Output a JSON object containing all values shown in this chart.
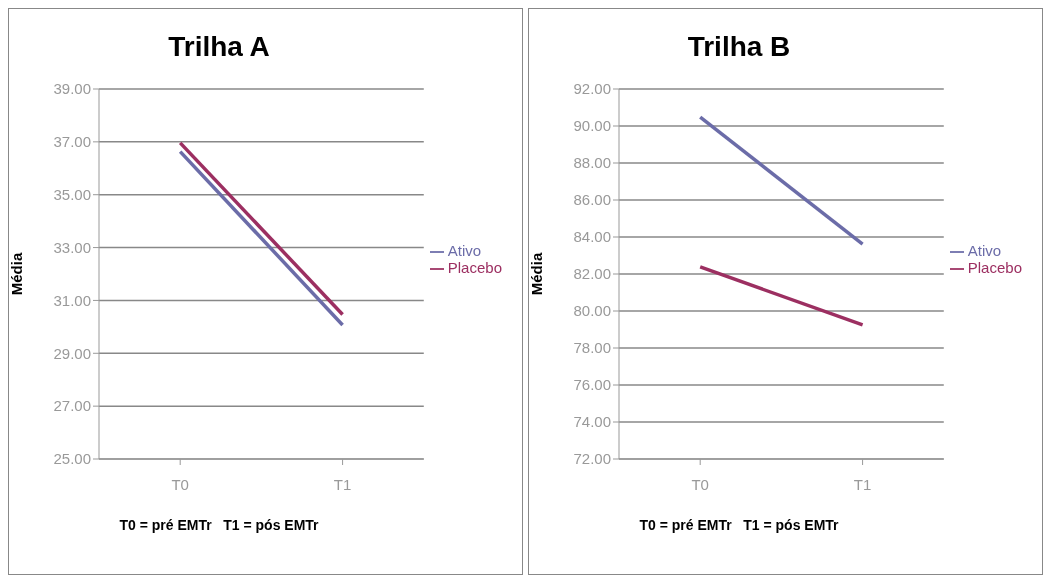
{
  "chart_data": [
    {
      "type": "line",
      "title": "Trilha A",
      "xlabel": "T0 = pré EMTr   T1 = pós EMTr",
      "ylabel": "Média",
      "categories": [
        "T0",
        "T1"
      ],
      "series": [
        {
          "name": "Ativo",
          "color": "#6b6ca8",
          "values": [
            36.63,
            30.07
          ]
        },
        {
          "name": "Placebo",
          "color": "#9c2f61",
          "values": [
            36.96,
            30.47
          ]
        }
      ],
      "ylim": [
        25,
        39
      ],
      "yticks": [
        {
          "value": 25,
          "label": "25.00"
        },
        {
          "value": 27,
          "label": "27.00"
        },
        {
          "value": 29,
          "label": "29.00"
        },
        {
          "value": 31,
          "label": "31.00"
        },
        {
          "value": 33,
          "label": "33.00"
        },
        {
          "value": 35,
          "label": "35.00"
        },
        {
          "value": 37,
          "label": "37.00"
        },
        {
          "value": 39,
          "label": "39.00"
        }
      ],
      "grid": "y",
      "legend": "right",
      "marker": "none",
      "line_style": "solid"
    },
    {
      "type": "line",
      "title": "Trilha B",
      "xlabel": "T0 = pré EMTr   T1 = pós EMTr",
      "ylabel": "Média",
      "categories": [
        "T0",
        "T1"
      ],
      "series": [
        {
          "name": "Ativo",
          "color": "#6b6ca8",
          "values": [
            90.48,
            83.62
          ]
        },
        {
          "name": "Placebo",
          "color": "#9c2f61",
          "values": [
            82.38,
            79.25
          ]
        }
      ],
      "ylim": [
        72,
        92
      ],
      "yticks": [
        {
          "value": 72,
          "label": "72.00"
        },
        {
          "value": 74,
          "label": "74.00"
        },
        {
          "value": 76,
          "label": "76.00"
        },
        {
          "value": 78,
          "label": "78.00"
        },
        {
          "value": 80,
          "label": "80.00"
        },
        {
          "value": 82,
          "label": "82.00"
        },
        {
          "value": 84,
          "label": "84.00"
        },
        {
          "value": 86,
          "label": "86.00"
        },
        {
          "value": 88,
          "label": "88.00"
        },
        {
          "value": 90,
          "label": "90.00"
        },
        {
          "value": 92,
          "label": "92.00"
        }
      ],
      "grid": "y",
      "legend": "right",
      "marker": "none",
      "line_style": "solid"
    }
  ]
}
